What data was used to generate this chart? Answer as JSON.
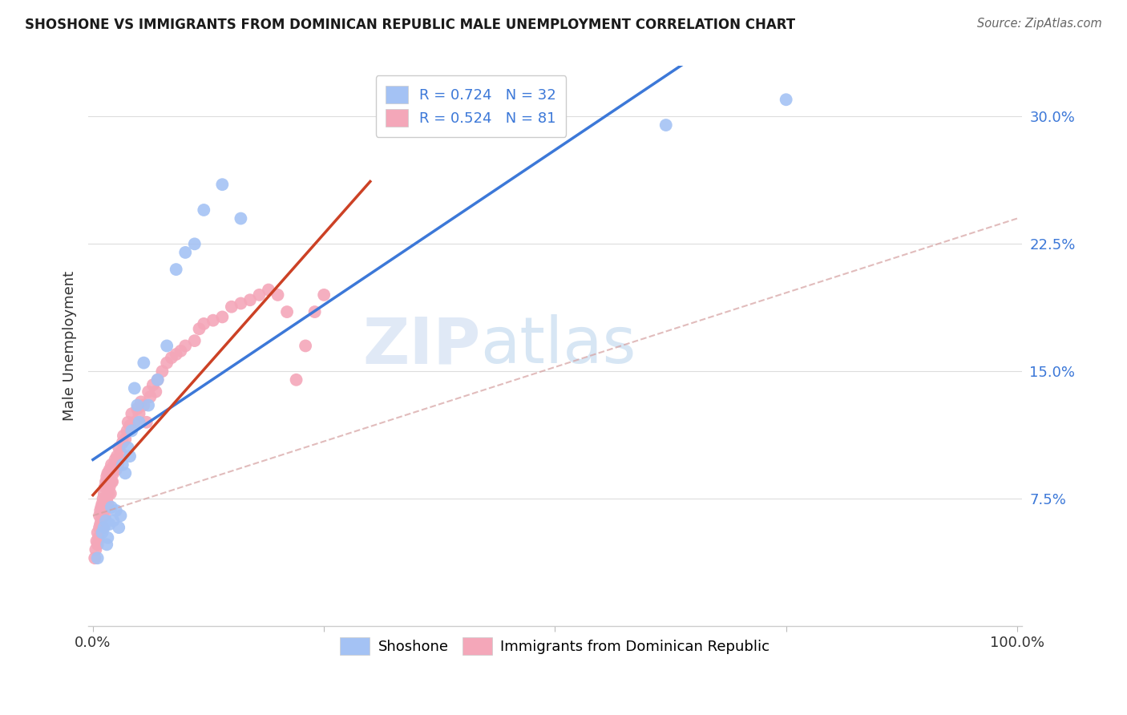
{
  "title": "SHOSHONE VS IMMIGRANTS FROM DOMINICAN REPUBLIC MALE UNEMPLOYMENT CORRELATION CHART",
  "source": "Source: ZipAtlas.com",
  "ylabel": "Male Unemployment",
  "yticks": [
    0.075,
    0.15,
    0.225,
    0.3
  ],
  "ytick_labels": [
    "7.5%",
    "15.0%",
    "22.5%",
    "30.0%"
  ],
  "legend_r1": "0.724",
  "legend_n1": "32",
  "legend_r2": "0.524",
  "legend_n2": "81",
  "color_shoshone": "#a4c2f4",
  "color_dr": "#f4a7b9",
  "color_line_shoshone": "#3c78d8",
  "color_line_dr": "#cc4125",
  "color_dashed": "#c0c0c0",
  "watermark_zip": "ZIP",
  "watermark_atlas": "atlas",
  "shoshone_x": [
    0.005,
    0.01,
    0.012,
    0.014,
    0.015,
    0.016,
    0.018,
    0.02,
    0.022,
    0.025,
    0.028,
    0.03,
    0.032,
    0.035,
    0.038,
    0.04,
    0.042,
    0.045,
    0.048,
    0.05,
    0.055,
    0.06,
    0.07,
    0.08,
    0.09,
    0.1,
    0.11,
    0.12,
    0.14,
    0.16,
    0.62,
    0.75
  ],
  "shoshone_y": [
    0.04,
    0.055,
    0.058,
    0.062,
    0.048,
    0.052,
    0.06,
    0.07,
    0.062,
    0.068,
    0.058,
    0.065,
    0.095,
    0.09,
    0.105,
    0.1,
    0.115,
    0.14,
    0.13,
    0.12,
    0.155,
    0.13,
    0.145,
    0.165,
    0.21,
    0.22,
    0.225,
    0.245,
    0.26,
    0.24,
    0.295,
    0.31
  ],
  "dr_x": [
    0.002,
    0.003,
    0.004,
    0.005,
    0.005,
    0.006,
    0.007,
    0.007,
    0.008,
    0.008,
    0.009,
    0.009,
    0.01,
    0.01,
    0.011,
    0.011,
    0.012,
    0.012,
    0.013,
    0.013,
    0.014,
    0.014,
    0.015,
    0.015,
    0.016,
    0.016,
    0.017,
    0.018,
    0.018,
    0.019,
    0.02,
    0.02,
    0.021,
    0.022,
    0.023,
    0.024,
    0.025,
    0.026,
    0.027,
    0.028,
    0.03,
    0.032,
    0.033,
    0.035,
    0.037,
    0.038,
    0.04,
    0.042,
    0.045,
    0.048,
    0.05,
    0.052,
    0.055,
    0.058,
    0.06,
    0.062,
    0.065,
    0.068,
    0.07,
    0.075,
    0.08,
    0.085,
    0.09,
    0.095,
    0.1,
    0.11,
    0.115,
    0.12,
    0.13,
    0.14,
    0.15,
    0.16,
    0.17,
    0.18,
    0.19,
    0.2,
    0.21,
    0.22,
    0.23,
    0.24,
    0.25
  ],
  "dr_y": [
    0.04,
    0.045,
    0.05,
    0.048,
    0.055,
    0.052,
    0.058,
    0.065,
    0.06,
    0.068,
    0.062,
    0.07,
    0.065,
    0.072,
    0.058,
    0.075,
    0.068,
    0.078,
    0.065,
    0.082,
    0.07,
    0.085,
    0.075,
    0.088,
    0.072,
    0.09,
    0.078,
    0.082,
    0.092,
    0.078,
    0.085,
    0.095,
    0.085,
    0.09,
    0.095,
    0.098,
    0.092,
    0.1,
    0.095,
    0.105,
    0.102,
    0.108,
    0.112,
    0.11,
    0.115,
    0.12,
    0.118,
    0.125,
    0.12,
    0.128,
    0.125,
    0.132,
    0.13,
    0.12,
    0.138,
    0.135,
    0.142,
    0.138,
    0.145,
    0.15,
    0.155,
    0.158,
    0.16,
    0.162,
    0.165,
    0.168,
    0.175,
    0.178,
    0.18,
    0.182,
    0.188,
    0.19,
    0.192,
    0.195,
    0.198,
    0.195,
    0.185,
    0.145,
    0.165,
    0.185,
    0.195
  ]
}
